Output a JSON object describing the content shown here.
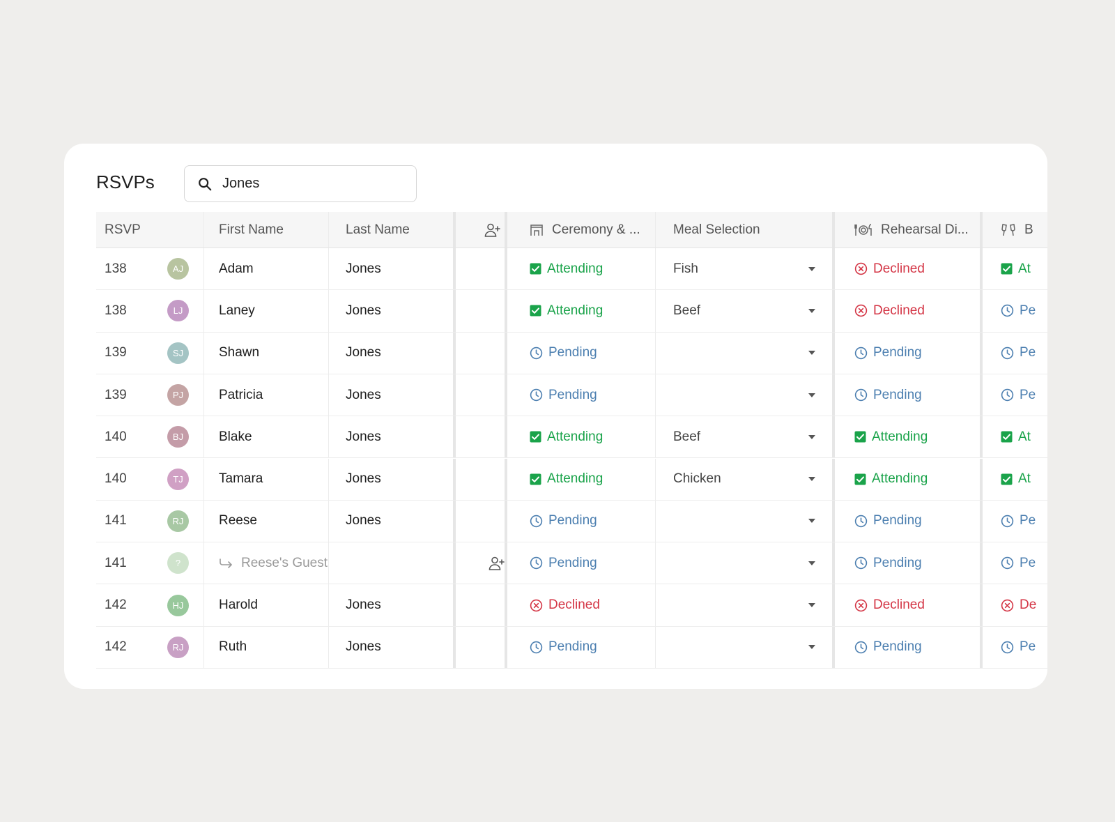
{
  "title": "RSVPs",
  "search": {
    "value": "Jones"
  },
  "columns": {
    "rsvp": "RSVP",
    "first_name": "First Name",
    "last_name": "Last Name",
    "ceremony": "Ceremony & ...",
    "meal": "Meal Selection",
    "rehearsal": "Rehearsal Di...",
    "brunch": "B"
  },
  "status_labels": {
    "attending": "Attending",
    "pending": "Pending",
    "declined": "Declined"
  },
  "colors": {
    "attending": "#1aa34a",
    "pending": "#4c7fb0",
    "declined": "#d43545"
  },
  "rows": [
    {
      "rsvp": "138",
      "initials": "AJ",
      "avatar_color": "#b8c4a0",
      "first_name": "Adam",
      "last_name": "Jones",
      "ceremony": "attending",
      "meal": "Fish",
      "rehearsal": "declined",
      "brunch": "attending",
      "brunch_text": "At"
    },
    {
      "rsvp": "138",
      "initials": "LJ",
      "avatar_color": "#c49bc6",
      "first_name": "Laney",
      "last_name": "Jones",
      "ceremony": "attending",
      "meal": "Beef",
      "rehearsal": "declined",
      "brunch": "pending",
      "brunch_text": "Pe"
    },
    {
      "rsvp": "139",
      "initials": "SJ",
      "avatar_color": "#a4c4c4",
      "first_name": "Shawn",
      "last_name": "Jones",
      "ceremony": "pending",
      "meal": "",
      "rehearsal": "pending",
      "brunch": "pending",
      "brunch_text": "Pe"
    },
    {
      "rsvp": "139",
      "initials": "PJ",
      "avatar_color": "#c4a4a4",
      "first_name": "Patricia",
      "last_name": "Jones",
      "ceremony": "pending",
      "meal": "",
      "rehearsal": "pending",
      "brunch": "pending",
      "brunch_text": "Pe"
    },
    {
      "rsvp": "140",
      "initials": "BJ",
      "avatar_color": "#c49ca8",
      "first_name": "Blake",
      "last_name": "Jones",
      "ceremony": "attending",
      "meal": "Beef",
      "rehearsal": "attending",
      "brunch": "attending",
      "brunch_text": "At"
    },
    {
      "rsvp": "140",
      "initials": "TJ",
      "avatar_color": "#d0a0c4",
      "first_name": "Tamara",
      "last_name": "Jones",
      "ceremony": "attending",
      "meal": "Chicken",
      "rehearsal": "attending",
      "brunch": "attending",
      "brunch_text": "At"
    },
    {
      "rsvp": "141",
      "initials": "RJ",
      "avatar_color": "#a8c8a4",
      "first_name": "Reese",
      "last_name": "Jones",
      "ceremony": "pending",
      "meal": "",
      "rehearsal": "pending",
      "brunch": "pending",
      "brunch_text": "Pe"
    },
    {
      "rsvp": "141",
      "initials": "?",
      "avatar_color": "#cfe3cc",
      "guest_label": "Reese's Guest",
      "ceremony": "pending",
      "meal": "",
      "rehearsal": "pending",
      "brunch": "pending",
      "brunch_text": "Pe"
    },
    {
      "rsvp": "142",
      "initials": "HJ",
      "avatar_color": "#98c89c",
      "first_name": "Harold",
      "last_name": "Jones",
      "ceremony": "declined",
      "meal": "",
      "rehearsal": "declined",
      "brunch": "declined",
      "brunch_text": "De"
    },
    {
      "rsvp": "142",
      "initials": "RJ",
      "avatar_color": "#c8a0c4",
      "first_name": "Ruth",
      "last_name": "Jones",
      "ceremony": "pending",
      "meal": "",
      "rehearsal": "pending",
      "brunch": "pending",
      "brunch_text": "Pe"
    }
  ]
}
